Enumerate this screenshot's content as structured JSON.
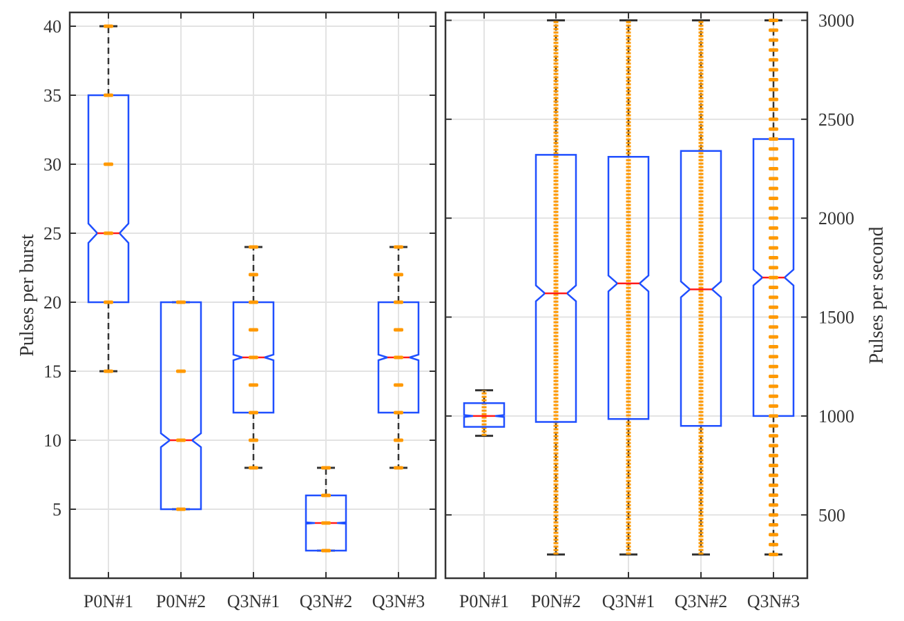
{
  "chart_data": [
    {
      "type": "boxplot",
      "ylabel": "Pulses per burst",
      "ylim": [
        0,
        41
      ],
      "yticks": [
        5,
        10,
        15,
        20,
        25,
        30,
        35,
        40
      ],
      "ytick_labels": [
        "5",
        "10",
        "15",
        "20",
        "25",
        "30",
        "35",
        "40"
      ],
      "y_axis_side": "left",
      "grid": true,
      "notched": true,
      "categories": [
        "P0N#1",
        "P0N#2",
        "Q3N#1",
        "Q3N#2",
        "Q3N#3"
      ],
      "boxes": [
        {
          "label": "P0N#1",
          "min": 15,
          "q1": 20,
          "median": 25,
          "q3": 35,
          "max": 40,
          "notch_low": 24.3,
          "notch_high": 25.7,
          "points": [
            15,
            20,
            25,
            30,
            35,
            40
          ]
        },
        {
          "label": "P0N#2",
          "min": 5,
          "q1": 5,
          "median": 10,
          "q3": 20,
          "max": 20,
          "notch_low": 9.5,
          "notch_high": 10.5,
          "points": [
            5,
            10,
            15,
            20
          ]
        },
        {
          "label": "Q3N#1",
          "min": 8,
          "q1": 12,
          "median": 16,
          "q3": 20,
          "max": 24,
          "notch_low": 15.8,
          "notch_high": 16.2,
          "points": [
            8,
            10,
            12,
            14,
            16,
            18,
            20,
            22,
            24
          ]
        },
        {
          "label": "Q3N#2",
          "min": 2,
          "q1": 2,
          "median": 4,
          "q3": 6,
          "max": 8,
          "notch_low": 3.95,
          "notch_high": 4.05,
          "points": [
            2,
            4,
            6,
            8
          ]
        },
        {
          "label": "Q3N#3",
          "min": 8,
          "q1": 12,
          "median": 16,
          "q3": 20,
          "max": 24,
          "notch_low": 15.8,
          "notch_high": 16.2,
          "points": [
            8,
            10,
            12,
            14,
            16,
            18,
            20,
            22,
            24
          ]
        }
      ]
    },
    {
      "type": "boxplot",
      "ylabel": "Pulses per second",
      "ylim": [
        180,
        3040
      ],
      "yticks": [
        500,
        1000,
        1500,
        2000,
        2500,
        3000
      ],
      "ytick_labels": [
        "500",
        "1000",
        "1500",
        "2000",
        "2500",
        "3000"
      ],
      "y_axis_side": "right",
      "grid": true,
      "notched": true,
      "categories": [
        "P0N#1",
        "P0N#2",
        "Q3N#1",
        "Q3N#2",
        "Q3N#3"
      ],
      "boxes": [
        {
          "label": "P0N#1",
          "min": 900,
          "q1": 945,
          "median": 1000,
          "q3": 1065,
          "max": 1130,
          "notch_low": 995,
          "notch_high": 1005,
          "dense": true
        },
        {
          "label": "P0N#2",
          "min": 300,
          "q1": 970,
          "median": 1620,
          "q3": 2320,
          "max": 3000,
          "notch_low": 1580,
          "notch_high": 1660,
          "dense": true
        },
        {
          "label": "Q3N#1",
          "min": 300,
          "q1": 985,
          "median": 1670,
          "q3": 2310,
          "max": 3000,
          "notch_low": 1630,
          "notch_high": 1710,
          "dense": true
        },
        {
          "label": "Q3N#2",
          "min": 300,
          "q1": 950,
          "median": 1640,
          "q3": 2340,
          "max": 3000,
          "notch_low": 1600,
          "notch_high": 1680,
          "dense": true
        },
        {
          "label": "Q3N#3",
          "min": 300,
          "q1": 1000,
          "median": 1700,
          "q3": 2400,
          "max": 3000,
          "notch_low": 1660,
          "notch_high": 1740,
          "dense": false
        }
      ]
    }
  ],
  "colors": {
    "box": "#1f4fff",
    "median": "#ff1a1a",
    "whisker": "#333333",
    "points": "#ff9900",
    "grid": "#e3e3e3",
    "axes": "#333333"
  }
}
